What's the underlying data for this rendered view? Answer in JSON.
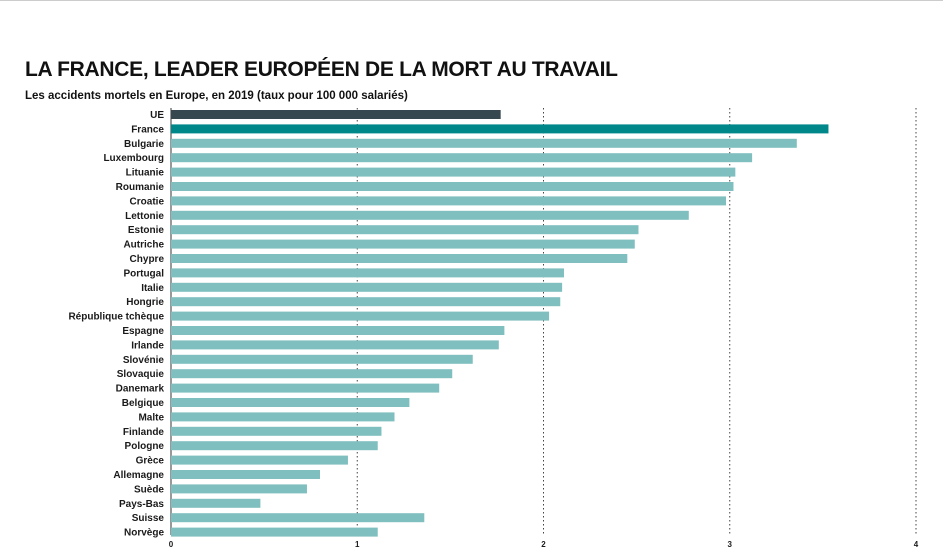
{
  "chart_data": {
    "type": "bar",
    "orientation": "horizontal",
    "title": "LA FRANCE, LEADER EUROPÉEN DE LA MORT AU TRAVAIL",
    "subtitle": "Les accidents mortels en Europe, en 2019 (taux pour 100 000 salariés)",
    "xlabel": "",
    "ylabel": "",
    "xlim": [
      0,
      4
    ],
    "x_ticks": [
      "0",
      "1",
      "2",
      "3",
      "4"
    ],
    "grid": "vertical dotted",
    "categories": [
      "UE",
      "France",
      "Bulgarie",
      "Luxembourg",
      "Lituanie",
      "Roumanie",
      "Croatie",
      "Lettonie",
      "Estonie",
      "Autriche",
      "Chypre",
      "Portugal",
      "Italie",
      "Hongrie",
      "République tchèque",
      "Espagne",
      "Irlande",
      "Slovénie",
      "Slovaquie",
      "Danemark",
      "Belgique",
      "Malte",
      "Finlande",
      "Pologne",
      "Grèce",
      "Allemagne",
      "Suède",
      "Pays-Bas",
      "Suisse",
      "Norvège"
    ],
    "values": [
      1.77,
      3.53,
      3.36,
      3.12,
      3.03,
      3.02,
      2.98,
      2.78,
      2.51,
      2.49,
      2.45,
      2.11,
      2.1,
      2.09,
      2.03,
      1.79,
      1.76,
      1.62,
      1.51,
      1.44,
      1.28,
      1.2,
      1.13,
      1.11,
      0.95,
      0.8,
      0.73,
      0.48,
      1.36,
      1.11
    ],
    "highlight": {
      "UE": "#37474f",
      "France": "#00878a"
    },
    "bar_color": "#7fbfbf"
  }
}
